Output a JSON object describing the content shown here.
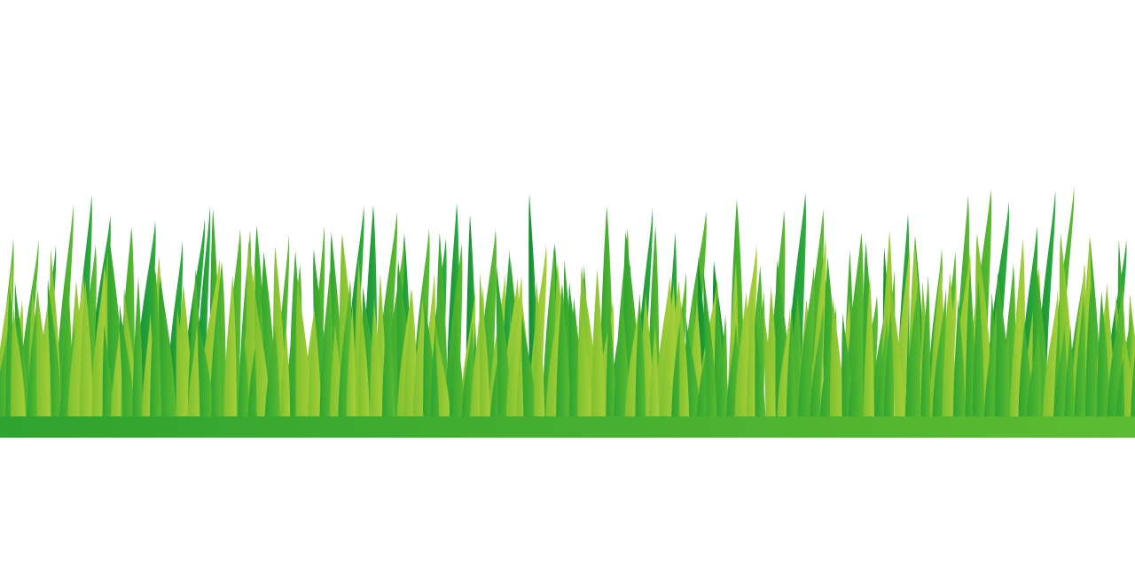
{
  "scene": {
    "subject": "grass-border",
    "background_color": "#ffffff",
    "colors": {
      "dark_green": "#1a9e3a",
      "mid_green": "#3cb22e",
      "light_green": "#8cc63f",
      "lime_green": "#a6ce39"
    }
  }
}
